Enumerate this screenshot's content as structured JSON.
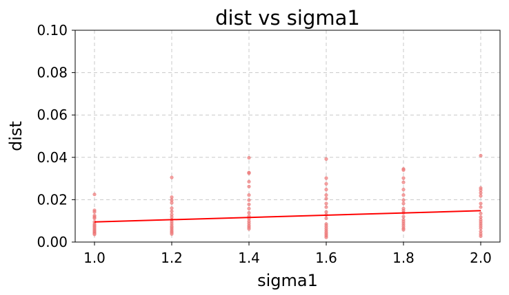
{
  "chart_data": {
    "type": "scatter",
    "title": "dist vs sigma1",
    "xlabel": "sigma1",
    "ylabel": "dist",
    "xlim": [
      0.95,
      2.05
    ],
    "ylim": [
      0.0,
      0.1
    ],
    "xticks": [
      1.0,
      1.2,
      1.4,
      1.6,
      1.8,
      2.0
    ],
    "yticks": [
      0.0,
      0.02,
      0.04,
      0.06,
      0.08,
      0.1
    ],
    "xtick_labels": [
      "1.0",
      "1.2",
      "1.4",
      "1.6",
      "1.8",
      "2.0"
    ],
    "ytick_labels": [
      "0.00",
      "0.02",
      "0.04",
      "0.06",
      "0.08",
      "0.10"
    ],
    "grid": true,
    "colors": {
      "points": "#f08080",
      "trend": "#ff0000"
    },
    "series": [
      {
        "kind": "points",
        "points": [
          [
            1.0,
            0.0225
          ],
          [
            1.0,
            0.015
          ],
          [
            1.0,
            0.0142
          ],
          [
            1.0,
            0.0125
          ],
          [
            1.0,
            0.0118
          ],
          [
            1.0,
            0.0112
          ],
          [
            1.0,
            0.0095
          ],
          [
            1.0,
            0.0085
          ],
          [
            1.0,
            0.0078
          ],
          [
            1.0,
            0.0072
          ],
          [
            1.0,
            0.0065
          ],
          [
            1.0,
            0.0058
          ],
          [
            1.0,
            0.0052
          ],
          [
            1.0,
            0.0046
          ],
          [
            1.0,
            0.0041
          ],
          [
            1.0,
            0.0036
          ],
          [
            1.2,
            0.0305
          ],
          [
            1.2,
            0.0212
          ],
          [
            1.2,
            0.0198
          ],
          [
            1.2,
            0.0185
          ],
          [
            1.2,
            0.016
          ],
          [
            1.2,
            0.0145
          ],
          [
            1.2,
            0.013
          ],
          [
            1.2,
            0.0118
          ],
          [
            1.2,
            0.0105
          ],
          [
            1.2,
            0.0095
          ],
          [
            1.2,
            0.0085
          ],
          [
            1.2,
            0.0075
          ],
          [
            1.2,
            0.0068
          ],
          [
            1.2,
            0.006
          ],
          [
            1.2,
            0.0052
          ],
          [
            1.2,
            0.0045
          ],
          [
            1.2,
            0.0038
          ],
          [
            1.4,
            0.0398
          ],
          [
            1.4,
            0.0328
          ],
          [
            1.4,
            0.0325
          ],
          [
            1.4,
            0.0285
          ],
          [
            1.4,
            0.0262
          ],
          [
            1.4,
            0.0222
          ],
          [
            1.4,
            0.0198
          ],
          [
            1.4,
            0.0178
          ],
          [
            1.4,
            0.0158
          ],
          [
            1.4,
            0.0138
          ],
          [
            1.4,
            0.0122
          ],
          [
            1.4,
            0.011
          ],
          [
            1.4,
            0.0098
          ],
          [
            1.4,
            0.0088
          ],
          [
            1.4,
            0.0078
          ],
          [
            1.4,
            0.007
          ],
          [
            1.4,
            0.0062
          ],
          [
            1.6,
            0.0392
          ],
          [
            1.6,
            0.0302
          ],
          [
            1.6,
            0.0275
          ],
          [
            1.6,
            0.0248
          ],
          [
            1.6,
            0.0222
          ],
          [
            1.6,
            0.0205
          ],
          [
            1.6,
            0.0182
          ],
          [
            1.6,
            0.0165
          ],
          [
            1.6,
            0.0142
          ],
          [
            1.6,
            0.0128
          ],
          [
            1.6,
            0.0112
          ],
          [
            1.6,
            0.0085
          ],
          [
            1.6,
            0.0075
          ],
          [
            1.6,
            0.0065
          ],
          [
            1.6,
            0.0055
          ],
          [
            1.6,
            0.0046
          ],
          [
            1.6,
            0.0038
          ],
          [
            1.6,
            0.003
          ],
          [
            1.6,
            0.0022
          ],
          [
            1.8,
            0.0345
          ],
          [
            1.8,
            0.034
          ],
          [
            1.8,
            0.0302
          ],
          [
            1.8,
            0.0282
          ],
          [
            1.8,
            0.0248
          ],
          [
            1.8,
            0.0222
          ],
          [
            1.8,
            0.0198
          ],
          [
            1.8,
            0.0182
          ],
          [
            1.8,
            0.0158
          ],
          [
            1.8,
            0.0148
          ],
          [
            1.8,
            0.0138
          ],
          [
            1.8,
            0.012
          ],
          [
            1.8,
            0.0105
          ],
          [
            1.8,
            0.0095
          ],
          [
            1.8,
            0.0085
          ],
          [
            1.8,
            0.0075
          ],
          [
            1.8,
            0.0065
          ],
          [
            1.8,
            0.0058
          ],
          [
            2.0,
            0.0408
          ],
          [
            2.0,
            0.0255
          ],
          [
            2.0,
            0.0245
          ],
          [
            2.0,
            0.0232
          ],
          [
            2.0,
            0.0218
          ],
          [
            2.0,
            0.0182
          ],
          [
            2.0,
            0.0165
          ],
          [
            2.0,
            0.0135
          ],
          [
            2.0,
            0.0118
          ],
          [
            2.0,
            0.0105
          ],
          [
            2.0,
            0.0095
          ],
          [
            2.0,
            0.0085
          ],
          [
            2.0,
            0.0075
          ],
          [
            2.0,
            0.0065
          ],
          [
            2.0,
            0.005
          ],
          [
            2.0,
            0.0038
          ],
          [
            2.0,
            0.0028
          ]
        ]
      },
      {
        "kind": "trend-line",
        "x": [
          1.0,
          2.0
        ],
        "y": [
          0.0095,
          0.0148
        ]
      }
    ]
  }
}
